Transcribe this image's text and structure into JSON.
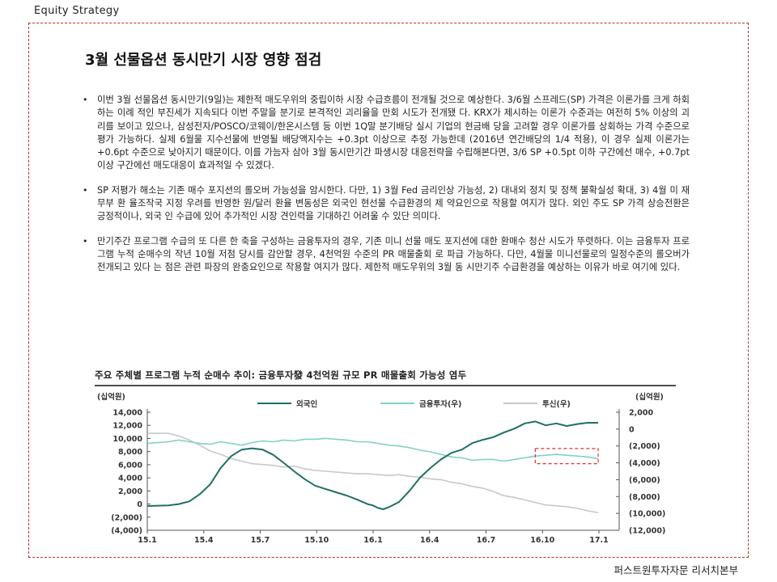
{
  "header": {
    "section": "Equity  Strategy"
  },
  "title": "3월 선물옵션 동시만기 시장 영향 점검",
  "bullets": [
    "이번 3월 선물옵션 동시만기(9일)는 제한적 매도우위의 중립이하 시장 수급흐름이 전개될 것으로 예상한다. 3/6월 스프레드(SP) 가격은 이론가를 크게 하회하는 이례 적인 부진세가 지속되다 이번 주말을 분기로 본격적인 괴리율을 만회 시도가 전개됐 다. KRX가 제시하는 이론가 수준과는 여전히 5% 이상의 괴리를 보이고 있으나, 삼성전자/POSCO/코웨이/한온시스템 등 이번 1Q말 분기배당 실시 기업의 현금배 당을 고려할 경우 이론가를 상회하는 가격 수준으로 평가 가능하다. 실제 6월물 지수선물에 반영될 배당액지수는 +0.3pt 이상으로 추정 가능한데 (2016년 연간배당의 1/4 적용), 이 경우 실제 이론가는 +0.6pt 수준으로 낮아지기 때문이다. 이를 가늠자 삼아 3월 동시만기간 파생시장 대응전략을 수립해본다면, 3/6 SP +0.5pt 이하 구간에선 매수, +0.7pt 이상 구간에선 매도대응이 효과적일 수 있겠다.",
    "SP 저평가 해소는 기존 매수 포지션의 롤오버 가능성을 암시한다. 다만, 1) 3월 Fed 금리인상 가능성, 2) 대내외 정치 및 정책 불확실성 확대, 3) 4월 미 재무부 환 율조작국 지정 우려를 반영한 원/달러 환율 변동성은 외국인 현선물 수급환경의 제 약요인으로 작용할 여지가 많다. 외인 주도 SP 가격 상승전환은 긍정적이나, 외국 인 수급에 있어 추가적인 시장 견인력을 기대하긴 어려울 수 있단 의미다.",
    "만기주간 프로그램 수급의 또 다른 한 축을 구성하는 금융투자의 경우, 기존 미니 선물 매도 포지션에 대한 환매수 청산 시도가 뚜렷하다. 이는 금융투자 프로그램 누적 순매수의 작년 10월 저점 당시를 감안할 경우, 4천억원 수준의 PR 매물출회 로 파급 가능하다. 다만, 4월물 미니선물로의 일정수준의 롤오버가 전개되고 있다 는 점은 관련 파장의 완충요인으로 작용할 여지가 많다. 제한적 매도우위의 3월 동 시만기주 수급환경을 예상하는 이유가 바로 여기에 있다."
  ],
  "chart_title": "주요 주체별 프로그램 누적 순매수 추이: 금융투자發 4천억원 규모 PR 매물출회 가능성 염두",
  "footer": {
    "source": "퍼스트원투자자문 리서치본부"
  },
  "colors": {
    "foreign": "#1f6f63",
    "financial_investment": "#82d2c4",
    "trust": "#c8c8c8",
    "highlight_box": "#e0302a"
  },
  "chart_data": {
    "type": "line",
    "left_unit": "(십억원)",
    "right_unit": "(십억원)",
    "x_ticks": [
      "15.1",
      "15.4",
      "15.7",
      "15.10",
      "16.1",
      "16.4",
      "16.7",
      "16.10",
      "17.1"
    ],
    "left_ticks": [
      "14,000",
      "12,000",
      "10,000",
      "8,000",
      "6,000",
      "4,000",
      "2,000",
      "0",
      "(2,000)",
      "(4,000)"
    ],
    "right_ticks": [
      "2,000",
      "0",
      "(2,000)",
      "(4,000)",
      "(6,000)",
      "(8,000)",
      "(10,000)",
      "(12,000)"
    ],
    "ylim_left": [
      -4000,
      14000
    ],
    "ylim_right": [
      -12000,
      2000
    ],
    "grid": false,
    "legend_position": "top",
    "series": [
      {
        "name": "외국인",
        "axis": "left",
        "points": [
          [
            0,
            -300
          ],
          [
            2,
            -200
          ],
          [
            3,
            0
          ],
          [
            4,
            400
          ],
          [
            5,
            1500
          ],
          [
            6,
            3000
          ],
          [
            7,
            5500
          ],
          [
            8,
            7300
          ],
          [
            9,
            8300
          ],
          [
            10,
            8500
          ],
          [
            11,
            8300
          ],
          [
            12,
            7500
          ],
          [
            13,
            6300
          ],
          [
            14,
            5000
          ],
          [
            15,
            3800
          ],
          [
            16,
            2800
          ],
          [
            17,
            2300
          ],
          [
            18,
            1800
          ],
          [
            19,
            1300
          ],
          [
            20,
            700
          ],
          [
            21,
            0
          ],
          [
            21.5,
            -200
          ],
          [
            22,
            -600
          ],
          [
            22.5,
            -800
          ],
          [
            23,
            -500
          ],
          [
            24,
            300
          ],
          [
            25,
            2000
          ],
          [
            26,
            4000
          ],
          [
            27,
            5500
          ],
          [
            28,
            6800
          ],
          [
            29,
            7800
          ],
          [
            30,
            8300
          ],
          [
            31,
            9300
          ],
          [
            32,
            9800
          ],
          [
            33,
            10200
          ],
          [
            34,
            10900
          ],
          [
            35,
            11500
          ],
          [
            36,
            12300
          ],
          [
            37,
            12600
          ],
          [
            38,
            12000
          ],
          [
            39,
            12300
          ],
          [
            40,
            11900
          ],
          [
            41,
            12200
          ],
          [
            42,
            12400
          ],
          [
            43,
            12400
          ]
        ]
      },
      {
        "name": "금융투자(우)",
        "axis": "right",
        "points": [
          [
            0,
            -1700
          ],
          [
            2,
            -1500
          ],
          [
            3,
            -1300
          ],
          [
            4,
            -1500
          ],
          [
            5,
            -1700
          ],
          [
            6,
            -1800
          ],
          [
            7,
            -1500
          ],
          [
            8,
            -1700
          ],
          [
            9,
            -1900
          ],
          [
            10,
            -1600
          ],
          [
            11,
            -1400
          ],
          [
            12,
            -1500
          ],
          [
            13,
            -1300
          ],
          [
            14,
            -1400
          ],
          [
            15,
            -1200
          ],
          [
            16,
            -1200
          ],
          [
            17,
            -1100
          ],
          [
            18,
            -1200
          ],
          [
            19,
            -1300
          ],
          [
            20,
            -1500
          ],
          [
            21,
            -1500
          ],
          [
            22,
            -1700
          ],
          [
            23,
            -1900
          ],
          [
            24,
            -2000
          ],
          [
            25,
            -2200
          ],
          [
            26,
            -2500
          ],
          [
            27,
            -2700
          ],
          [
            28,
            -3000
          ],
          [
            29,
            -3300
          ],
          [
            30,
            -3400
          ],
          [
            31,
            -3700
          ],
          [
            32,
            -3600
          ],
          [
            33,
            -3600
          ],
          [
            34,
            -3800
          ],
          [
            35,
            -3600
          ],
          [
            36,
            -3400
          ],
          [
            37,
            -3200
          ],
          [
            38,
            -3100
          ],
          [
            39,
            -3000
          ],
          [
            40,
            -3100
          ],
          [
            41,
            -3200
          ],
          [
            42,
            -3300
          ],
          [
            43,
            -3500
          ]
        ]
      },
      {
        "name": "투신(우)",
        "axis": "right",
        "points": [
          [
            0,
            -500
          ],
          [
            2,
            -500
          ],
          [
            3,
            -800
          ],
          [
            4,
            -1300
          ],
          [
            5,
            -1900
          ],
          [
            6,
            -2600
          ],
          [
            7,
            -3000
          ],
          [
            8,
            -3500
          ],
          [
            9,
            -3800
          ],
          [
            10,
            -4100
          ],
          [
            11,
            -4200
          ],
          [
            12,
            -4300
          ],
          [
            13,
            -4500
          ],
          [
            14,
            -4400
          ],
          [
            15,
            -4700
          ],
          [
            16,
            -4900
          ],
          [
            17,
            -5000
          ],
          [
            18,
            -5100
          ],
          [
            19,
            -5200
          ],
          [
            20,
            -5300
          ],
          [
            21,
            -5300
          ],
          [
            22,
            -5400
          ],
          [
            23,
            -5500
          ],
          [
            24,
            -5400
          ],
          [
            25,
            -5600
          ],
          [
            26,
            -5700
          ],
          [
            27,
            -5900
          ],
          [
            28,
            -6000
          ],
          [
            29,
            -6300
          ],
          [
            30,
            -6500
          ],
          [
            31,
            -6800
          ],
          [
            32,
            -7000
          ],
          [
            33,
            -7400
          ],
          [
            34,
            -7900
          ],
          [
            35,
            -8100
          ],
          [
            36,
            -8400
          ],
          [
            37,
            -8700
          ],
          [
            38,
            -9000
          ],
          [
            39,
            -9100
          ],
          [
            40,
            -9200
          ],
          [
            41,
            -9400
          ],
          [
            42,
            -9700
          ],
          [
            43,
            -9900
          ]
        ]
      }
    ],
    "highlight": {
      "x_range": [
        37,
        43
      ],
      "axis": "right",
      "y_range": [
        -2300,
        -4100
      ]
    }
  }
}
